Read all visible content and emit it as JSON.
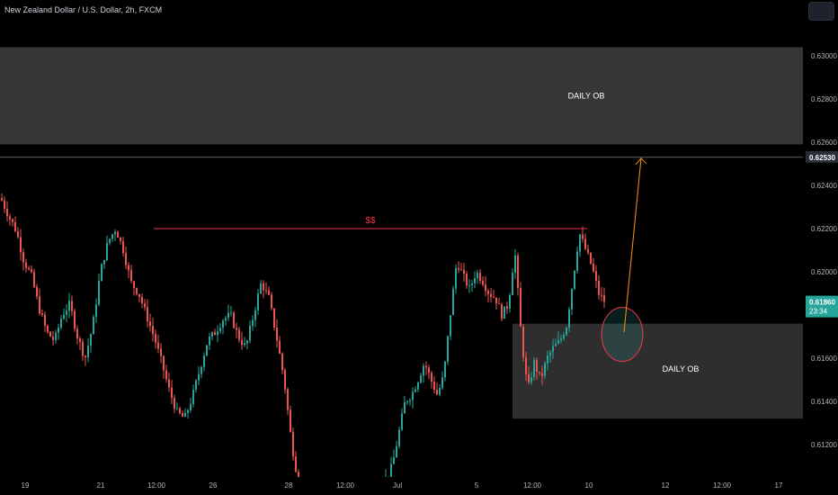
{
  "header": {
    "symbol_title": "New Zealand Dollar / U.S. Dollar, 2h, FXCM"
  },
  "colors": {
    "background": "#000000",
    "up_candle": "#26a69a",
    "down_candle": "#ef5350",
    "zone_fill": "#363636",
    "zone_fill_lower": "#2e2e2e",
    "liquidity_line": "#f23645",
    "arrow": "#f7931a",
    "current_price_label": "#26a69a",
    "crosshair_label": "#2a2e39",
    "axis_text": "#b2b5be"
  },
  "chart_data": {
    "type": "candlestick",
    "title": "New Zealand Dollar / U.S. Dollar, 2h, FXCM",
    "x_tick_labels": [
      "19",
      "21",
      "12:00",
      "26",
      "28",
      "12:00",
      "Jul",
      "5",
      "12:00",
      "10",
      "12",
      "12:00",
      "17"
    ],
    "y_tick_labels": [
      "0.63000",
      "0.62800",
      "0.62600",
      "0.62400",
      "0.62200",
      "0.62000",
      "0.61600",
      "0.61400",
      "0.61200"
    ],
    "ylim": [
      0.6104,
      0.631
    ],
    "grid": false,
    "current_price": {
      "value": "0.61860",
      "countdown": "23:34"
    },
    "crosshair_price": "0.62530",
    "zones": [
      {
        "label": "DAILY OB",
        "price_low": 0.6259,
        "price_high": 0.6304
      },
      {
        "label": "DAILY OB",
        "price_low": 0.6132,
        "price_high": 0.6176
      }
    ],
    "annotations": [
      {
        "type": "liquidity_line",
        "label": "$$",
        "price": 0.622
      },
      {
        "type": "circle",
        "center_price": 0.6171
      },
      {
        "type": "arrow",
        "from_price": 0.6172,
        "to_price": 0.6253
      }
    ],
    "candle_trend": [
      0.6234,
      0.6226,
      0.6219,
      0.6205,
      0.6198,
      0.6183,
      0.6172,
      0.6168,
      0.618,
      0.6185,
      0.617,
      0.616,
      0.6175,
      0.62,
      0.6214,
      0.622,
      0.621,
      0.6195,
      0.619,
      0.618,
      0.617,
      0.6158,
      0.6145,
      0.6135,
      0.6132,
      0.6142,
      0.6155,
      0.6168,
      0.6172,
      0.6178,
      0.618,
      0.617,
      0.6165,
      0.618,
      0.6195,
      0.6188,
      0.617,
      0.615,
      0.612,
      0.61,
      0.6104,
      0.611,
      0.6125,
      0.614,
      0.6143,
      0.615,
      0.6158,
      0.615,
      0.6143,
      0.6152,
      0.618,
      0.6205,
      0.6198,
      0.6192,
      0.62,
      0.6196,
      0.619,
      0.6188,
      0.618,
      0.6185,
      0.621,
      0.617,
      0.6145,
      0.6158,
      0.615,
      0.616,
      0.6165,
      0.6168,
      0.6175,
      0.6196,
      0.6218,
      0.621,
      0.6202,
      0.619,
      0.6186
    ]
  }
}
